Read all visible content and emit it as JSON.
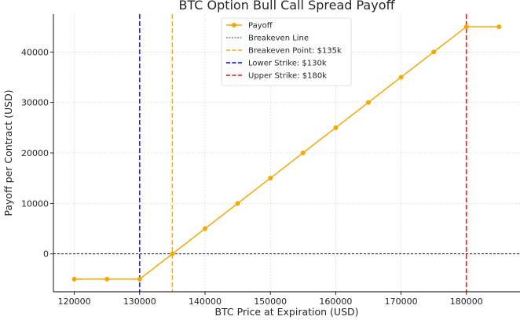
{
  "chart_data": {
    "type": "line",
    "title": "BTC Option Bull Call Spread Payoff",
    "xlabel": "BTC Price at Expiration (USD)",
    "ylabel": "Payoff per Contract (USD)",
    "xlim": [
      116800,
      188200
    ],
    "ylim": [
      -7500,
      47500
    ],
    "x_ticks": [
      120000,
      130000,
      140000,
      150000,
      160000,
      170000,
      180000
    ],
    "y_ticks": [
      0,
      10000,
      20000,
      30000,
      40000
    ],
    "grid": true,
    "legend_position": "top-center",
    "series": [
      {
        "name": "Payoff",
        "color": "#f5a800",
        "marker": "circle",
        "x": [
          120000,
          125000,
          130000,
          135000,
          140000,
          145000,
          150000,
          155000,
          160000,
          165000,
          170000,
          175000,
          180000,
          185000
        ],
        "y": [
          -5000,
          -5000,
          -5000,
          0,
          5000,
          10000,
          15000,
          20000,
          25000,
          30000,
          35000,
          40000,
          45000,
          45000
        ]
      }
    ],
    "reference_lines": [
      {
        "name": "Breakeven Line",
        "orientation": "horizontal",
        "value": 0,
        "color": "#000000",
        "style": "dashed"
      },
      {
        "name": "Breakeven Point: $135k",
        "orientation": "vertical",
        "value": 135000,
        "color": "#f5a800",
        "style": "dashed"
      },
      {
        "name": "Lower Strike: $130k",
        "orientation": "vertical",
        "value": 130000,
        "color": "#0000ff",
        "style": "dashed"
      },
      {
        "name": "Upper Strike: $180k",
        "orientation": "vertical",
        "value": 180000,
        "color": "#ff0000",
        "style": "dashed"
      }
    ]
  }
}
